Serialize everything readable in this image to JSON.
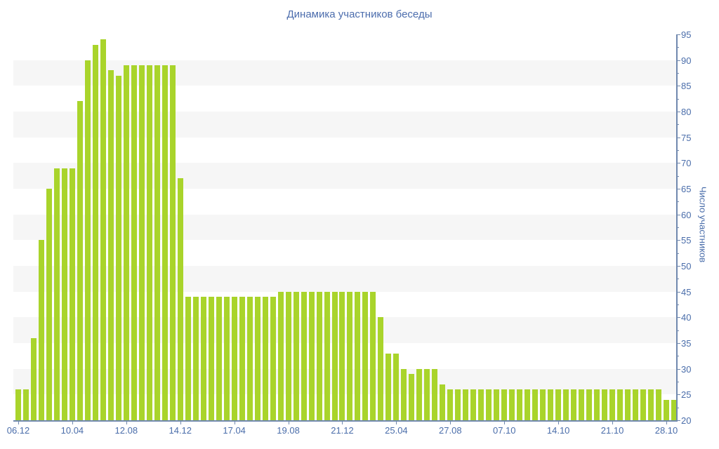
{
  "chart_data": {
    "type": "bar",
    "title": "Динамика участников беседы",
    "ylabel": "Число участников",
    "xlabel": "",
    "ylim": [
      20,
      95
    ],
    "y_tick_step": 5,
    "y_minor_tick_step": 2.5,
    "y_tick_labels": [
      95,
      90,
      85,
      80,
      75,
      70,
      65,
      60,
      55,
      50,
      45,
      40,
      35,
      30,
      25,
      20
    ],
    "legend": "none",
    "grid": "alternating horizontal gray stripes every 5 units",
    "background_stripes": {
      "color": "#f6f6f6",
      "bands": [
        [
          25,
          30
        ],
        [
          35,
          40
        ],
        [
          45,
          50
        ],
        [
          55,
          60
        ],
        [
          65,
          70
        ],
        [
          75,
          80
        ],
        [
          85,
          90
        ]
      ]
    },
    "bar_color": "#a9d42b",
    "values": [
      26,
      26,
      36,
      55,
      65,
      69,
      69,
      69,
      82,
      90,
      93,
      94,
      88,
      87,
      89,
      89,
      89,
      89,
      89,
      89,
      89,
      67,
      44,
      44,
      44,
      44,
      44,
      44,
      44,
      44,
      44,
      44,
      44,
      44,
      45,
      45,
      45,
      45,
      45,
      45,
      45,
      45,
      45,
      45,
      45,
      45,
      45,
      40,
      33,
      33,
      30,
      29,
      30,
      30,
      30,
      27,
      26,
      26,
      26,
      26,
      26,
      26,
      26,
      26,
      26,
      26,
      26,
      26,
      26,
      26,
      26,
      26,
      26,
      26,
      26,
      26,
      26,
      26,
      26,
      26,
      26,
      26,
      26,
      26,
      24,
      24
    ],
    "x_ticks": [
      {
        "bar": 0,
        "label": "06.12"
      },
      {
        "bar": 7,
        "label": "10.04"
      },
      {
        "bar": 14,
        "label": "12.08"
      },
      {
        "bar": 21,
        "label": "14.12"
      },
      {
        "bar": 28,
        "label": "17.04"
      },
      {
        "bar": 35,
        "label": "19.08"
      },
      {
        "bar": 42,
        "label": "21.12"
      },
      {
        "bar": 49,
        "label": "25.04"
      },
      {
        "bar": 56,
        "label": "27.08"
      },
      {
        "bar": 63,
        "label": "07.10"
      },
      {
        "bar": 70,
        "label": "14.10"
      },
      {
        "bar": 77,
        "label": "21.10"
      },
      {
        "bar": 84,
        "label": "28.10"
      }
    ]
  },
  "colors": {
    "background": "#ffffff",
    "bar": "#a9d42b",
    "stripe": "#f6f6f6",
    "axis_line": "#7088ae",
    "text": "#4a6daa",
    "title_text": "#4c6dad"
  }
}
